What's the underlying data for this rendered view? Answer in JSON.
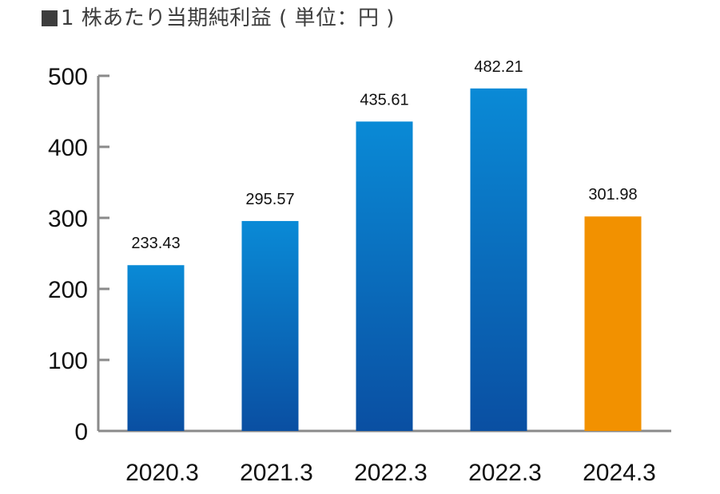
{
  "chart_data": {
    "type": "bar",
    "title": "1 株あたり当期純利益 ( 単位：円 )",
    "categories": [
      "2020.3",
      "2021.3",
      "2022.3",
      "2022.3",
      "2024.3"
    ],
    "values": [
      233.43,
      295.57,
      435.61,
      482.21,
      301.98
    ],
    "value_labels": [
      "233.43",
      "295.57",
      "435.61",
      "482.21",
      "301.98"
    ],
    "xlabel": "",
    "ylabel": "",
    "ylim": [
      0,
      500
    ],
    "yticks": [
      0,
      100,
      200,
      300,
      400,
      500
    ],
    "grid": false,
    "legend": "none",
    "highlight_index": 4,
    "colors": {
      "bar_top": "#0a8ad6",
      "bar_bottom": "#0a4fa2",
      "highlight": "#f29100",
      "axis": "#8a8a8a",
      "title": "#3d3d3d"
    }
  }
}
